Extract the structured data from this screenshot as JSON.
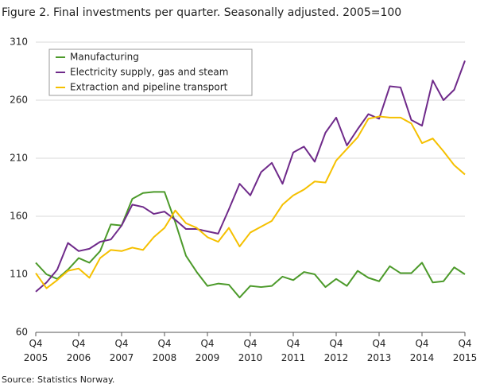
{
  "chart_data": {
    "type": "line",
    "title": "Figure 2. Final investments per quarter. Seasonally adjusted. 2005=100",
    "source": "Source: Statistics Norway.",
    "categories": [
      "Q4\n2005",
      null,
      null,
      null,
      "Q4\n2006",
      null,
      null,
      null,
      "Q4\n2007",
      null,
      null,
      null,
      "Q4\n2008",
      null,
      null,
      null,
      "Q4\n2009",
      null,
      null,
      null,
      "Q4\n2010",
      null,
      null,
      null,
      "Q4\n2011",
      null,
      null,
      null,
      "Q4\n2012",
      null,
      null,
      null,
      "Q4\n2013",
      null,
      null,
      null,
      "Q4\n2014",
      null,
      null,
      null,
      "Q4\n2015"
    ],
    "series": [
      {
        "name": "Manufacturing",
        "color": "#4c9a2a",
        "values": [
          120,
          110,
          106,
          114,
          124,
          120,
          130,
          153,
          152,
          175,
          180,
          181,
          181,
          155,
          126,
          112,
          100,
          102,
          101,
          90,
          100,
          99,
          100,
          108,
          105,
          112,
          110,
          99,
          106,
          100,
          113,
          107,
          104,
          117,
          111,
          111,
          120,
          103,
          104,
          116,
          110
        ]
      },
      {
        "name": "Electricity supply, gas and steam",
        "color": "#6f2a8a",
        "values": [
          95,
          103,
          114,
          137,
          130,
          132,
          138,
          140,
          152,
          170,
          168,
          162,
          164,
          157,
          149,
          149,
          147,
          145,
          166,
          188,
          178,
          198,
          206,
          188,
          215,
          220,
          207,
          232,
          245,
          221,
          235,
          248,
          244,
          272,
          271,
          243,
          238,
          277,
          260,
          269,
          294
        ]
      },
      {
        "name": "Extraction and pipeline transport",
        "color": "#f5c000",
        "values": [
          111,
          98,
          105,
          113,
          115,
          107,
          124,
          131,
          130,
          133,
          131,
          142,
          150,
          165,
          154,
          150,
          142,
          138,
          150,
          134,
          146,
          151,
          156,
          170,
          178,
          183,
          190,
          189,
          208,
          218,
          228,
          244,
          246,
          245,
          245,
          240,
          223,
          227,
          216,
          204,
          196
        ]
      }
    ],
    "ylim": [
      60,
      310
    ],
    "yticks": [
      60,
      110,
      160,
      210,
      260,
      310
    ],
    "grid": true,
    "legend": "top-left"
  }
}
